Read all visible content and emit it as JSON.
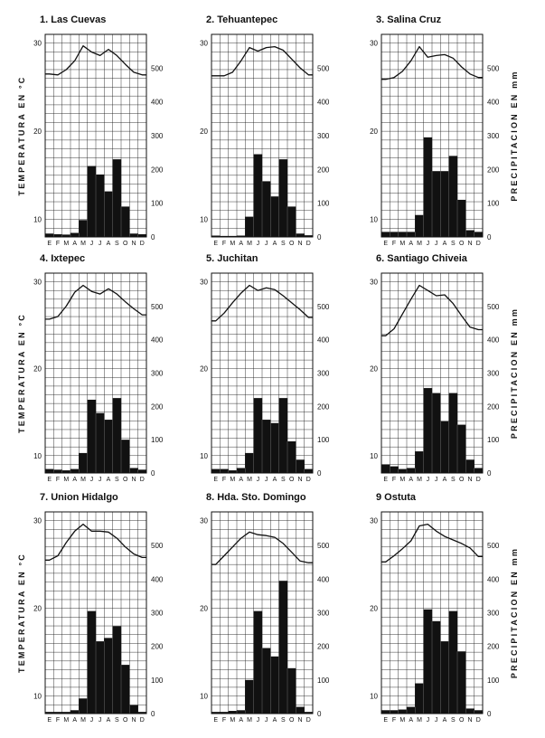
{
  "labels": {
    "left_axis": "TEMPERATURA EN °C",
    "right_axis": "PRECIPITACION EN mm"
  },
  "chart_data": [
    {
      "type": "bar+line",
      "title": "1. Las Cuevas",
      "months": [
        "E",
        "F",
        "M",
        "A",
        "M",
        "J",
        "J",
        "A",
        "S",
        "O",
        "N",
        "D"
      ],
      "temp_ticks": [
        "30",
        "20",
        "10"
      ],
      "precip_ticks": [
        "500",
        "400",
        "300",
        "200",
        "100",
        "0"
      ],
      "temperature": [
        26.5,
        26.4,
        27,
        28,
        29.7,
        29,
        28.6,
        29.3,
        28.6,
        27.6,
        26.7,
        26.4
      ],
      "precipitation": [
        10,
        8,
        7,
        12,
        50,
        210,
        185,
        135,
        230,
        90,
        10,
        8
      ]
    },
    {
      "type": "bar+line",
      "title": "2. Tehuantepec",
      "months": [
        "E",
        "F",
        "M",
        "A",
        "M",
        "J",
        "J",
        "A",
        "S",
        "O",
        "N",
        "D"
      ],
      "temp_ticks": [
        "30",
        "20",
        "10"
      ],
      "precip_ticks": [
        "500",
        "400",
        "300",
        "200",
        "100",
        "0"
      ],
      "temperature": [
        26.3,
        26.3,
        26.7,
        28,
        29.5,
        29.1,
        29.5,
        29.6,
        29.2,
        28.2,
        27.2,
        26.4
      ],
      "precipitation": [
        4,
        3,
        3,
        4,
        60,
        245,
        165,
        120,
        230,
        90,
        10,
        5
      ]
    },
    {
      "type": "bar+line",
      "title": "3. Salina Cruz",
      "months": [
        "E",
        "F",
        "M",
        "A",
        "M",
        "J",
        "J",
        "A",
        "S",
        "O",
        "N",
        "D"
      ],
      "temp_ticks": [
        "30",
        "20",
        "10"
      ],
      "precip_ticks": [
        "500",
        "400",
        "300",
        "200",
        "100",
        "0"
      ],
      "temperature": [
        25.9,
        26.1,
        26.8,
        28,
        29.6,
        28.4,
        28.6,
        28.7,
        28.3,
        27.3,
        26.5,
        26.1
      ],
      "precipitation": [
        15,
        15,
        15,
        15,
        65,
        295,
        195,
        195,
        240,
        110,
        20,
        15
      ]
    },
    {
      "type": "bar+line",
      "title": "4. Ixtepec",
      "months": [
        "E",
        "F",
        "M",
        "A",
        "M",
        "J",
        "J",
        "A",
        "S",
        "O",
        "N",
        "D"
      ],
      "temp_ticks": [
        "30",
        "20",
        "10"
      ],
      "precip_ticks": [
        "500",
        "400",
        "300",
        "200",
        "100",
        "0"
      ],
      "temperature": [
        25.7,
        26,
        27.2,
        28.8,
        29.6,
        28.9,
        28.6,
        29.2,
        28.6,
        27.7,
        26.9,
        26.2
      ],
      "precipitation": [
        12,
        10,
        8,
        12,
        60,
        220,
        180,
        160,
        225,
        100,
        15,
        10
      ]
    },
    {
      "type": "bar+line",
      "title": "5. Juchitan",
      "months": [
        "E",
        "F",
        "M",
        "A",
        "M",
        "J",
        "J",
        "A",
        "S",
        "O",
        "N",
        "D"
      ],
      "temp_ticks": [
        "30",
        "20",
        "10"
      ],
      "precip_ticks": [
        "500",
        "400",
        "300",
        "200",
        "100",
        "0"
      ],
      "temperature": [
        25.5,
        26.4,
        27.6,
        28.7,
        29.6,
        29,
        29.3,
        29.1,
        28.4,
        27.6,
        26.8,
        25.9
      ],
      "precipitation": [
        12,
        12,
        8,
        15,
        60,
        225,
        160,
        150,
        225,
        95,
        40,
        12
      ]
    },
    {
      "type": "bar+line",
      "title": "6. Santiago Chiveia",
      "months": [
        "E",
        "F",
        "M",
        "A",
        "M",
        "J",
        "J",
        "A",
        "S",
        "O",
        "N",
        "D"
      ],
      "temp_ticks": [
        "30",
        "20",
        "10"
      ],
      "precip_ticks": [
        "500",
        "400",
        "300",
        "200",
        "100",
        "0"
      ],
      "temperature": [
        23.8,
        24.6,
        26.3,
        28,
        29.6,
        29,
        28.4,
        28.5,
        27.5,
        26.1,
        24.8,
        24.5
      ],
      "precipitation": [
        25,
        20,
        12,
        15,
        65,
        255,
        240,
        155,
        240,
        145,
        40,
        15
      ]
    },
    {
      "type": "bar+line",
      "title": "7. Union Hidalgo",
      "months": [
        "E",
        "F",
        "M",
        "A",
        "M",
        "J",
        "J",
        "A",
        "S",
        "O",
        "N",
        "D"
      ],
      "temp_ticks": [
        "30",
        "20",
        "10"
      ],
      "precip_ticks": [
        "500",
        "400",
        "300",
        "200",
        "100",
        "0"
      ],
      "temperature": [
        25.5,
        26,
        27.5,
        28.8,
        29.6,
        28.8,
        28.8,
        28.7,
        28,
        27,
        26.2,
        25.8
      ],
      "precipitation": [
        5,
        5,
        5,
        10,
        45,
        305,
        215,
        225,
        260,
        145,
        25,
        5
      ]
    },
    {
      "type": "bar+line",
      "title": "8. Hda. Sto. Domingo",
      "months": [
        "E",
        "F",
        "M",
        "A",
        "M",
        "J",
        "J",
        "A",
        "S",
        "O",
        "N",
        "D"
      ],
      "temp_ticks": [
        "30",
        "20",
        "10"
      ],
      "precip_ticks": [
        "500",
        "400",
        "300",
        "200",
        "100",
        "0"
      ],
      "temperature": [
        25,
        26,
        27,
        28,
        28.7,
        28.4,
        28.3,
        28.1,
        27.4,
        26.4,
        25.4,
        25.2
      ],
      "precipitation": [
        5,
        5,
        8,
        10,
        100,
        305,
        195,
        170,
        395,
        135,
        20,
        5
      ]
    },
    {
      "type": "bar+line",
      "title": "9 Ostuta",
      "months": [
        "E",
        "F",
        "M",
        "A",
        "M",
        "J",
        "J",
        "A",
        "S",
        "O",
        "N",
        "D"
      ],
      "temp_ticks": [
        "30",
        "20",
        "10"
      ],
      "precip_ticks": [
        "500",
        "400",
        "300",
        "200",
        "100",
        "0"
      ],
      "temperature": [
        25.3,
        26,
        26.8,
        27.7,
        29.4,
        29.6,
        28.8,
        28.2,
        27.8,
        27.4,
        26.9,
        25.9
      ],
      "precipitation": [
        10,
        10,
        12,
        20,
        90,
        310,
        275,
        215,
        305,
        185,
        15,
        10
      ]
    }
  ]
}
